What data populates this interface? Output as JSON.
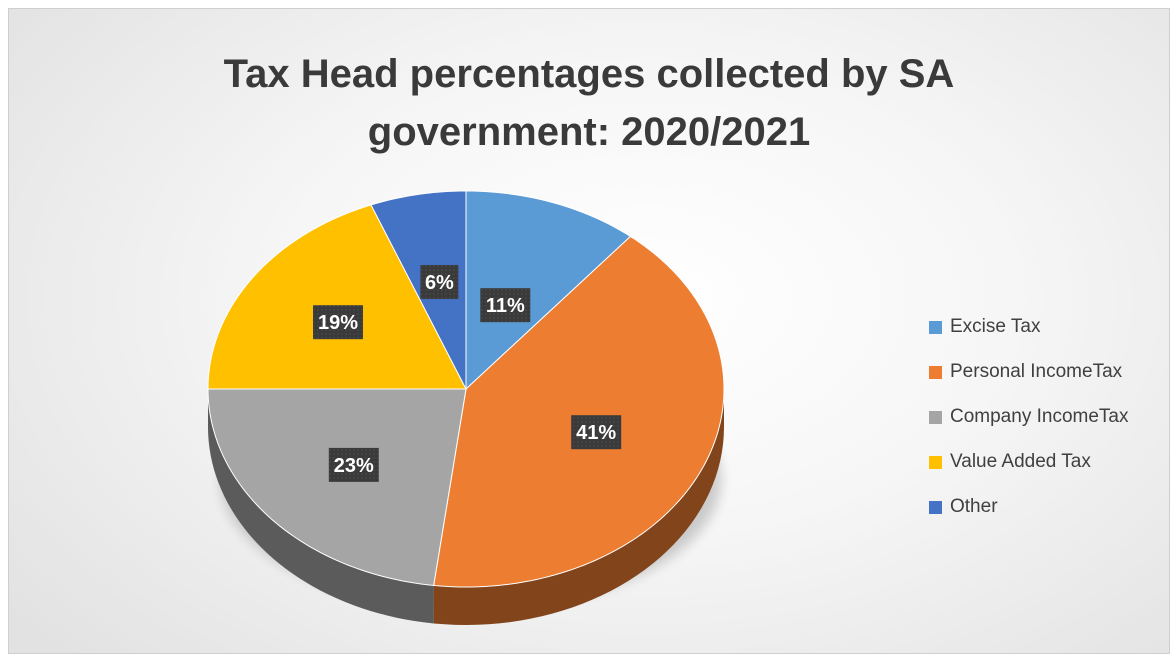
{
  "chart_data": {
    "type": "pie",
    "title": "Tax Head percentages collected by SA government: 2020/2021",
    "title_lines": [
      "Tax Head percentages collected by SA",
      "government: 2020/2021"
    ],
    "categories": [
      "Excise Tax",
      "Personal IncomeTax",
      "Company IncomeTax",
      "Value Added Tax",
      "Other"
    ],
    "values": [
      11,
      41,
      23,
      19,
      6
    ],
    "labels": [
      "11%",
      "41%",
      "23%",
      "19%",
      "6%"
    ],
    "colors": [
      "#5B9BD5",
      "#ED7D31",
      "#A5A5A5",
      "#FFC000",
      "#4472C4"
    ],
    "legend_position": "right",
    "style": "3d-pie"
  }
}
